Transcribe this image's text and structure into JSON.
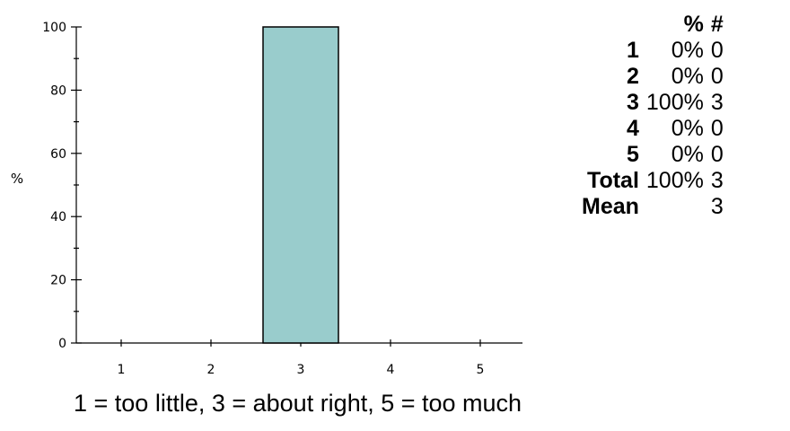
{
  "chart_data": {
    "type": "bar",
    "categories": [
      "1",
      "2",
      "3",
      "4",
      "5"
    ],
    "values": [
      0,
      0,
      100,
      0,
      0
    ],
    "ylabel": "%",
    "xlabel": "",
    "title": "",
    "ylim": [
      0,
      100
    ],
    "y_ticks": [
      "0",
      "20",
      "40",
      "60",
      "80",
      "100"
    ],
    "bar_color": "#99cccc",
    "grid": false
  },
  "table": {
    "headers": [
      "%",
      "#"
    ],
    "rows": [
      {
        "label": "1",
        "pct": "0%",
        "count": "0"
      },
      {
        "label": "2",
        "pct": "0%",
        "count": "0"
      },
      {
        "label": "3",
        "pct": "100%",
        "count": "3"
      },
      {
        "label": "4",
        "pct": "0%",
        "count": "0"
      },
      {
        "label": "5",
        "pct": "0%",
        "count": "0"
      },
      {
        "label": "Total",
        "pct": "100%",
        "count": "3"
      },
      {
        "label": "Mean",
        "pct": "",
        "count": "3"
      }
    ]
  },
  "caption": "1 = too little, 3 = about right, 5 = too much"
}
